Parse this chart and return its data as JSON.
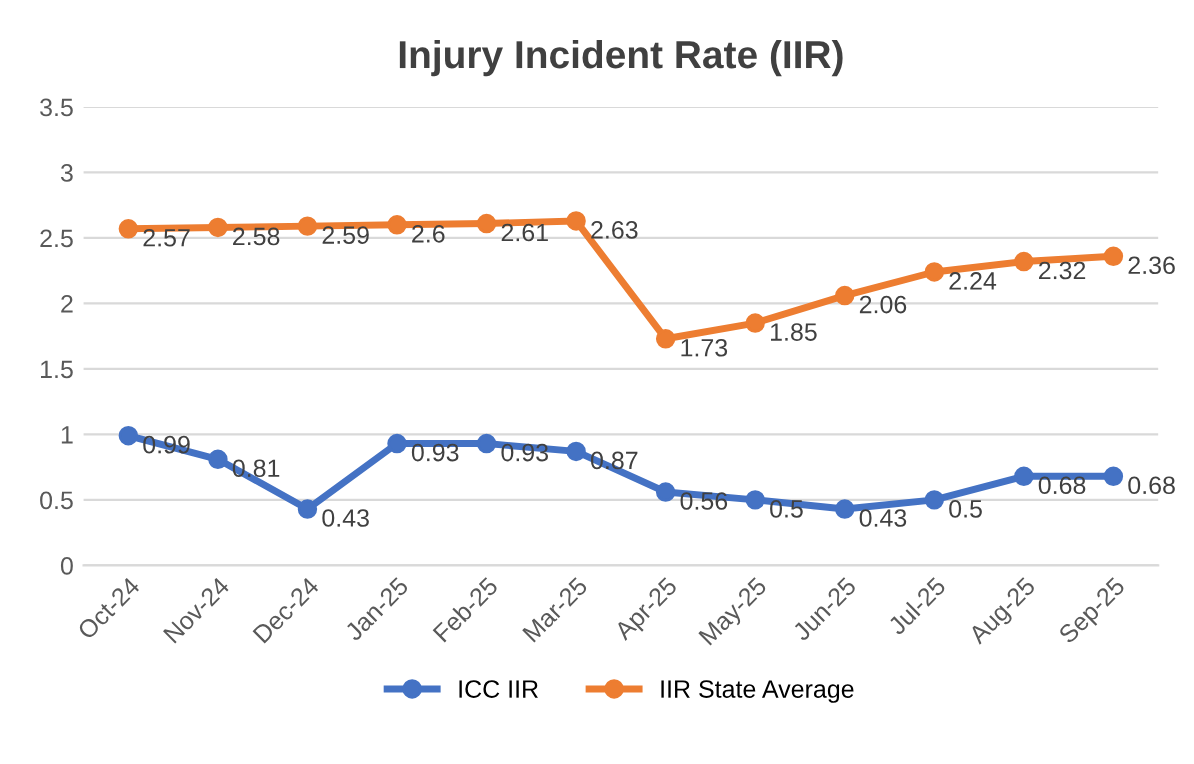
{
  "chart_data": {
    "type": "line",
    "title": "Injury Incident Rate (IIR)",
    "categories": [
      "Oct-24",
      "Nov-24",
      "Dec-24",
      "Jan-25",
      "Feb-25",
      "Mar-25",
      "Apr-25",
      "May-25",
      "Jun-25",
      "Jul-25",
      "Aug-25",
      "Sep-25"
    ],
    "series": [
      {
        "name": "ICC IIR",
        "color": "#4472c4",
        "values": [
          0.99,
          0.81,
          0.43,
          0.93,
          0.93,
          0.87,
          0.56,
          0.5,
          0.43,
          0.5,
          0.68,
          0.68
        ]
      },
      {
        "name": "IIR State Average",
        "color": "#ed7d31",
        "values": [
          2.57,
          2.58,
          2.59,
          2.6,
          2.61,
          2.63,
          1.73,
          1.85,
          2.06,
          2.24,
          2.32,
          2.36
        ]
      }
    ],
    "ylim": [
      0,
      3.5
    ],
    "yticks": [
      0,
      0.5,
      1,
      1.5,
      2,
      2.5,
      3,
      3.5
    ],
    "grid": "y",
    "legend": "bottom",
    "data_labels": true,
    "marker": "circle",
    "line_style": "solid"
  }
}
